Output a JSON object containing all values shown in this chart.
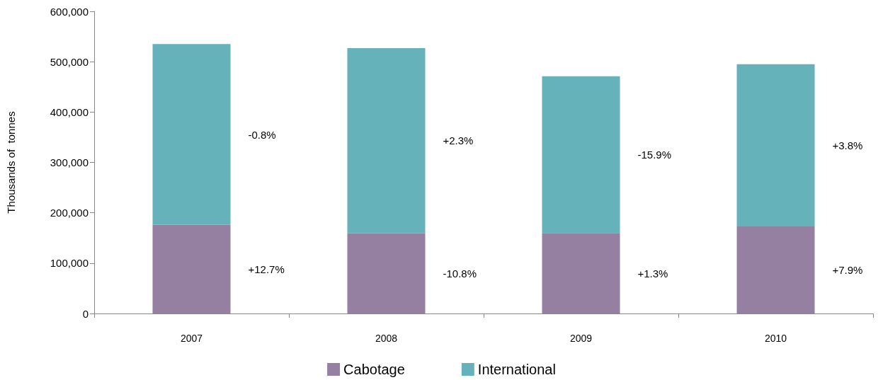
{
  "chart_data": {
    "type": "bar",
    "stacked": true,
    "ylabel": "Thousands of  tonnes",
    "categories": [
      "2007",
      "2008",
      "2009",
      "2010"
    ],
    "series": [
      {
        "name": "Cabotage",
        "color": "#9580a2",
        "values": [
          176000,
          159000,
          160000,
          173000
        ]
      },
      {
        "name": "International",
        "color": "#65b2ba",
        "values": [
          359000,
          368000,
          311000,
          322000
        ]
      }
    ],
    "ylim": [
      0,
      600000
    ],
    "yticks": [
      {
        "value": 0,
        "label": "0"
      },
      {
        "value": 100000,
        "label": "100,000"
      },
      {
        "value": 200000,
        "label": "200,000"
      },
      {
        "value": 300000,
        "label": "300,000"
      },
      {
        "value": 400000,
        "label": "400,000"
      },
      {
        "value": 500000,
        "label": "500,000"
      },
      {
        "value": 600000,
        "label": "600,000"
      }
    ],
    "grid": false,
    "legend": "bottom",
    "annotations": [
      "-0.8%",
      "+12.7%",
      "+2.3%",
      "-10.8%",
      "-15.9%",
      "+1.3%",
      "+3.8%",
      "+7.9%"
    ]
  }
}
